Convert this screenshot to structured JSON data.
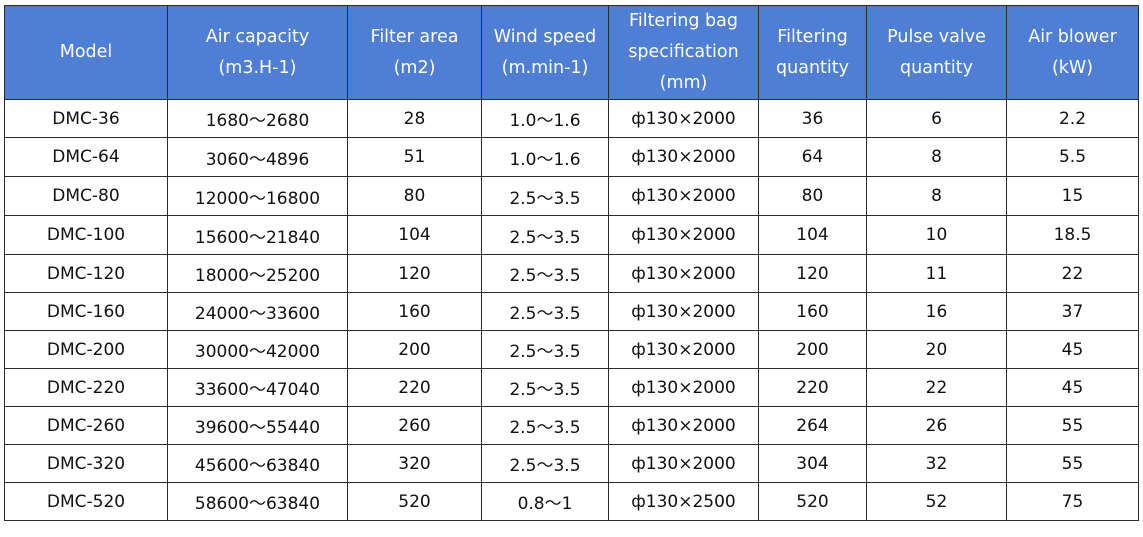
{
  "table": {
    "headers": [
      [
        "Model"
      ],
      [
        "Air capacity",
        "(m3.H-1)"
      ],
      [
        "Filter area",
        "(m2)"
      ],
      [
        "Wind speed",
        "(m.min-1)"
      ],
      [
        "Filtering bag",
        "specification",
        "(mm)"
      ],
      [
        "Filtering",
        "quantity"
      ],
      [
        "Pulse valve",
        "quantity"
      ],
      [
        "Air blower",
        "(kW)"
      ]
    ],
    "header_color": "#4f7fd4",
    "rows": [
      [
        "DMC-36",
        "1680～2680",
        "28",
        "1.0～1.6",
        "ф130×2000",
        "36",
        "6",
        "2.2"
      ],
      [
        "DMC-64",
        "3060～4896",
        "51",
        "1.0～1.6",
        "ф130×2000",
        "64",
        "8",
        "5.5"
      ],
      [
        "DMC-80",
        "12000～16800",
        "80",
        "2.5～3.5",
        "ф130×2000",
        "80",
        "8",
        "15"
      ],
      [
        "DMC-100",
        "15600～21840",
        "104",
        "2.5～3.5",
        "ф130×2000",
        "104",
        "10",
        "18.5"
      ],
      [
        "DMC-120",
        "18000～25200",
        "120",
        "2.5～3.5",
        "ф130×2000",
        "120",
        "11",
        "22"
      ],
      [
        "DMC-160",
        "24000～33600",
        "160",
        "2.5～3.5",
        "ф130×2000",
        "160",
        "16",
        "37"
      ],
      [
        "DMC-200",
        "30000～42000",
        "200",
        "2.5～3.5",
        "ф130×2000",
        "200",
        "20",
        "45"
      ],
      [
        "DMC-220",
        "33600～47040",
        "220",
        "2.5～3.5",
        "ф130×2000",
        "220",
        "22",
        "45"
      ],
      [
        "DMC-260",
        "39600～55440",
        "260",
        "2.5～3.5",
        "ф130×2000",
        "264",
        "26",
        "55"
      ],
      [
        "DMC-320",
        "45600～63840",
        "320",
        "2.5～3.5",
        "ф130×2000",
        "304",
        "32",
        "55"
      ],
      [
        "DMC-520",
        "58600～63840",
        "520",
        "0.8～1",
        "ф130×2500",
        "520",
        "52",
        "75"
      ]
    ]
  }
}
